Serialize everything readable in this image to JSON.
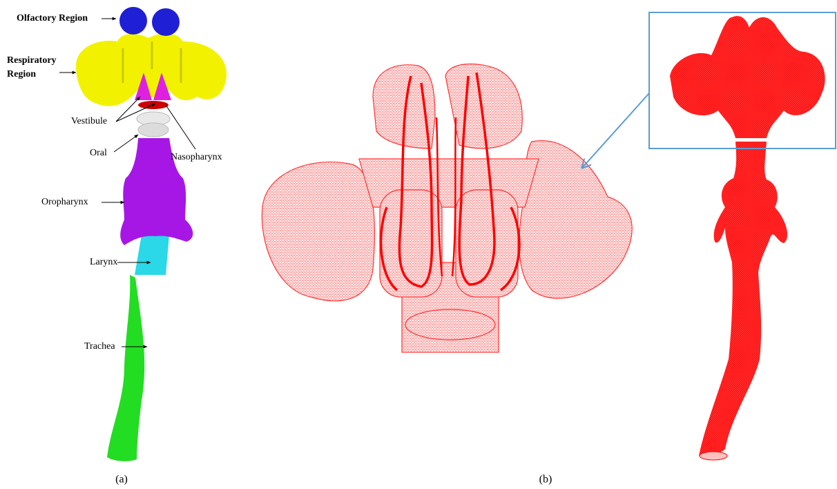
{
  "panels": [
    {
      "label": "(a)",
      "annotations": [
        "Olfactory Region",
        "Respiratory Region",
        "Vestibule",
        "Oral",
        "Nasopharynx",
        "Oropharynx",
        "Larynx",
        "Trachea"
      ]
    },
    {
      "label": "(b)"
    }
  ]
}
